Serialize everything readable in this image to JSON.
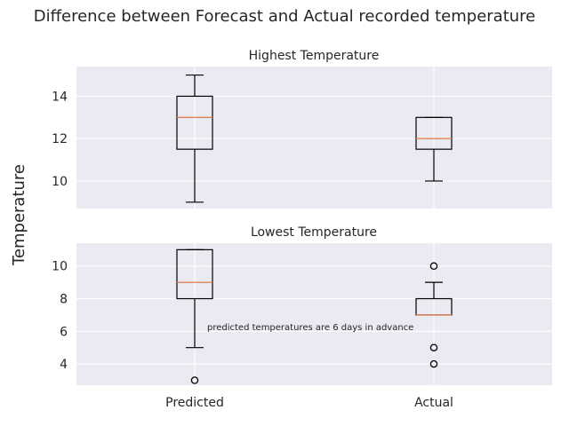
{
  "chart_data": {
    "type": "boxplot",
    "title": "Difference between Forecast and Actual recorded temperature",
    "ylabel": "Temperature",
    "categories": [
      "Predicted",
      "Actual"
    ],
    "annotation": "predicted temperatures are 6 days in advance",
    "colors": {
      "background": "#eaeaf2",
      "grid": "#ffffff",
      "box": "#000000",
      "median": "#dd8452"
    },
    "panels": [
      {
        "title": "Highest Temperature",
        "ylim": [
          8.7,
          15.4
        ],
        "yticks": [
          10,
          12,
          14
        ],
        "boxes": [
          {
            "category": "Predicted",
            "whisker_low": 9,
            "q1": 11.5,
            "median": 13,
            "q3": 14,
            "whisker_high": 15,
            "outliers": []
          },
          {
            "category": "Actual",
            "whisker_low": 10,
            "q1": 11.5,
            "median": 12,
            "q3": 13,
            "whisker_high": 13,
            "outliers": []
          }
        ]
      },
      {
        "title": "Lowest Temperature",
        "ylim": [
          2.7,
          11.4
        ],
        "yticks": [
          4,
          6,
          8,
          10
        ],
        "boxes": [
          {
            "category": "Predicted",
            "whisker_low": 5,
            "q1": 8,
            "median": 9,
            "q3": 11,
            "whisker_high": 11,
            "outliers": [
              3
            ]
          },
          {
            "category": "Actual",
            "whisker_low": 7,
            "q1": 7,
            "median": 7,
            "q3": 8,
            "whisker_high": 9,
            "outliers": [
              10,
              5,
              4
            ]
          }
        ]
      }
    ]
  }
}
